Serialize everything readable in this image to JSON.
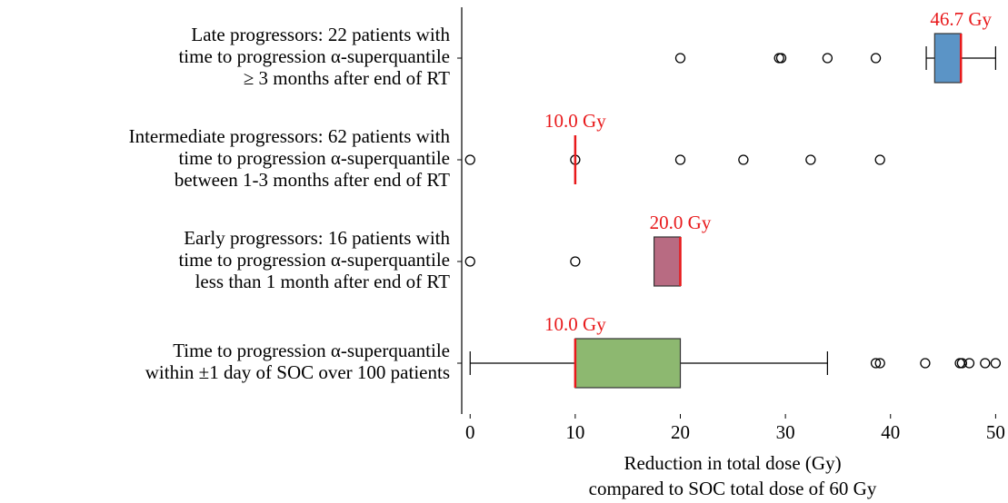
{
  "chart_data": {
    "type": "boxplot",
    "categories": [
      [
        "Late progressors: 22 patients with",
        "time to progression α-superquantile",
        "≥ 3 months after end of RT"
      ],
      [
        "Intermediate progressors: 62 patients with",
        "time to progression α-superquantile",
        "between 1-3 months after end of RT"
      ],
      [
        "Early progressors: 16 patients with",
        "time to progression α-superquantile",
        "less than 1 month after end of RT"
      ],
      [
        "Time to progression α-superquantile",
        "within ±1 day of SOC over 100 patients"
      ]
    ],
    "boxes": [
      {
        "whislo": 43.4,
        "q1": 44.2,
        "median": 46.7,
        "q3": 46.7,
        "whishi": 50,
        "fliers": [
          20,
          29.4,
          29.6,
          34,
          38.6
        ],
        "color": "#5b94c6",
        "median_label": "46.7 Gy"
      },
      {
        "whislo": 10,
        "q1": 10,
        "median": 10,
        "q3": 10,
        "whishi": 10,
        "fliers": [
          0,
          10,
          20,
          26,
          32.4,
          39
        ],
        "color": "#8db870",
        "median_label": "10.0 Gy"
      },
      {
        "whislo": 17.5,
        "q1": 17.5,
        "median": 20,
        "q3": 20,
        "whishi": 20,
        "fliers": [
          0,
          10
        ],
        "color": "#b86b82",
        "median_label": "20.0 Gy"
      },
      {
        "whislo": 0,
        "q1": 10,
        "median": 10,
        "q3": 20,
        "whishi": 34,
        "fliers": [
          38.6,
          39,
          43.3,
          46.6,
          46.8,
          47.5,
          49,
          50
        ],
        "color": "#8db870",
        "median_label": "10.0 Gy"
      }
    ],
    "median_color": "#e8191b",
    "xlabel": [
      "Reduction in total dose (Gy)",
      "compared to SOC total dose of 60 Gy"
    ],
    "xlim": [
      -0.8,
      50.4
    ],
    "xticks": [
      0,
      10,
      20,
      30,
      40,
      50
    ]
  }
}
